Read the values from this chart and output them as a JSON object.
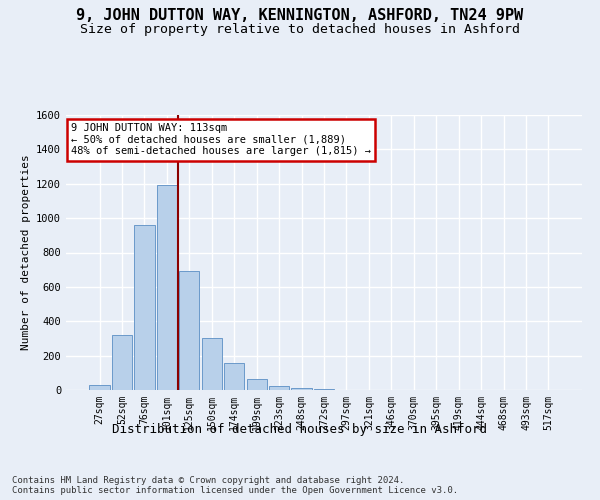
{
  "title1": "9, JOHN DUTTON WAY, KENNINGTON, ASHFORD, TN24 9PW",
  "title2": "Size of property relative to detached houses in Ashford",
  "xlabel": "Distribution of detached houses by size in Ashford",
  "ylabel": "Number of detached properties",
  "categories": [
    "27sqm",
    "52sqm",
    "76sqm",
    "101sqm",
    "125sqm",
    "150sqm",
    "174sqm",
    "199sqm",
    "223sqm",
    "248sqm",
    "272sqm",
    "297sqm",
    "321sqm",
    "346sqm",
    "370sqm",
    "395sqm",
    "419sqm",
    "444sqm",
    "468sqm",
    "493sqm",
    "517sqm"
  ],
  "values": [
    30,
    320,
    960,
    1190,
    690,
    300,
    155,
    65,
    25,
    12,
    5,
    2,
    2,
    1,
    0,
    0,
    0,
    0,
    0,
    0,
    0
  ],
  "bar_color": "#b8d0ea",
  "bar_edge_color": "#5b8ec4",
  "vline_color": "#8b0000",
  "vline_x_index": 3.5,
  "annotation_line1": "9 JOHN DUTTON WAY: 113sqm",
  "annotation_line2": "← 50% of detached houses are smaller (1,889)",
  "annotation_line3": "48% of semi-detached houses are larger (1,815) →",
  "annotation_box_edge_color": "#cc0000",
  "footer": "Contains HM Land Registry data © Crown copyright and database right 2024.\nContains public sector information licensed under the Open Government Licence v3.0.",
  "ylim_max": 1600,
  "background_color": "#e8eef7",
  "grid_color": "#ffffff",
  "title1_fontsize": 11,
  "title2_fontsize": 9.5,
  "xlabel_fontsize": 9,
  "ylabel_fontsize": 8,
  "tick_fontsize": 7,
  "footer_fontsize": 6.5,
  "annot_fontsize": 7.5
}
